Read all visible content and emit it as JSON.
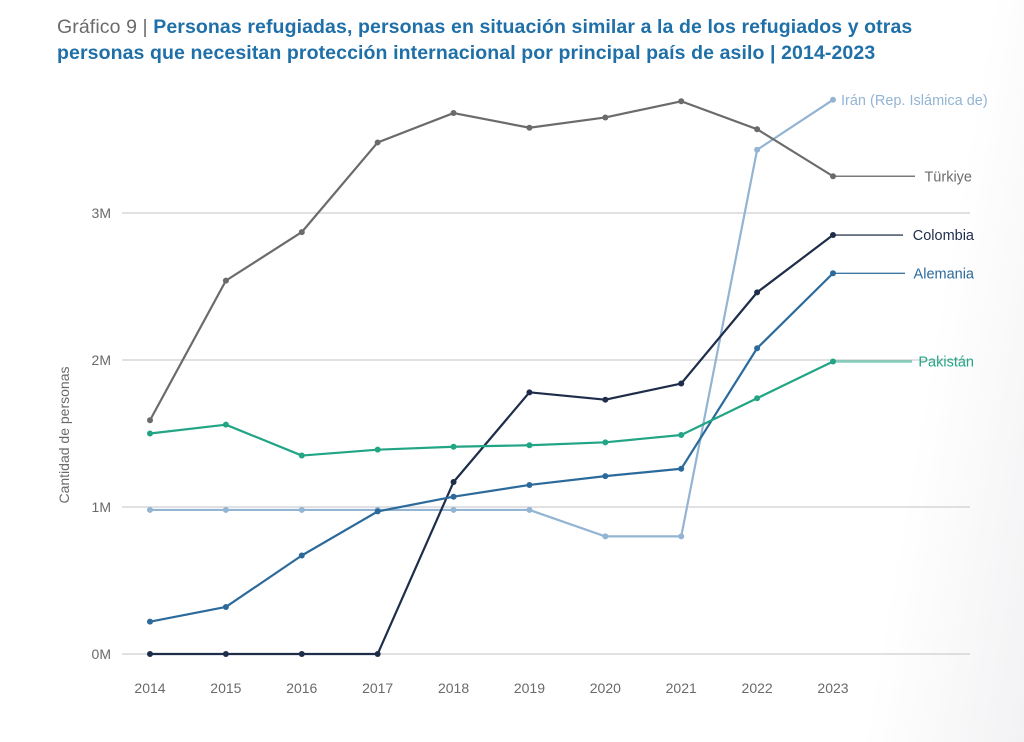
{
  "header": {
    "prefix": "Gráfico 9 | ",
    "title": "Personas refugiadas, personas en situación similar a la de los refugiados y otras personas que necesitan protección internacional por principal país de asilo | 2014-2023"
  },
  "chart_data": {
    "type": "line",
    "title": "Personas refugiadas, personas en situación similar a la de los refugiados y otras personas que necesitan protección internacional por principal país de asilo | 2014-2023",
    "xlabel": "",
    "ylabel": "Cantidad de personas",
    "x": [
      2014,
      2015,
      2016,
      2017,
      2018,
      2019,
      2020,
      2021,
      2022,
      2023
    ],
    "x_tick_labels": [
      "2014",
      "2015",
      "2016",
      "2017",
      "2018",
      "2019",
      "2020",
      "2021",
      "2022",
      "2023"
    ],
    "y_ticks": [
      0,
      1000000,
      2000000,
      3000000
    ],
    "y_tick_labels": [
      "0M",
      "1M",
      "2M",
      "3M"
    ],
    "ylim": [
      0,
      3900000
    ],
    "grid": true,
    "legend": "direct-labels-right",
    "series": [
      {
        "name": "Irán (Rep. Islámica de)",
        "color": "#93b4d3",
        "values": [
          980000,
          980000,
          980000,
          980000,
          980000,
          980000,
          800000,
          800000,
          3430000,
          3770000
        ]
      },
      {
        "name": "Türkiye",
        "color": "#6b6b6b",
        "values": [
          1590000,
          2540000,
          2870000,
          3480000,
          3680000,
          3580000,
          3650000,
          3760000,
          3570000,
          3250000
        ]
      },
      {
        "name": "Colombia",
        "color": "#1e2d4a",
        "values": [
          0,
          0,
          0,
          0,
          1170000,
          1780000,
          1730000,
          1840000,
          2460000,
          2850000
        ]
      },
      {
        "name": "Alemania",
        "color": "#2b6a9b",
        "values": [
          220000,
          320000,
          670000,
          970000,
          1070000,
          1150000,
          1210000,
          1260000,
          2080000,
          2590000
        ]
      },
      {
        "name": "Pakistán",
        "color": "#22a585",
        "values": [
          1500000,
          1560000,
          1350000,
          1390000,
          1410000,
          1420000,
          1440000,
          1490000,
          1740000,
          1990000
        ]
      }
    ]
  }
}
